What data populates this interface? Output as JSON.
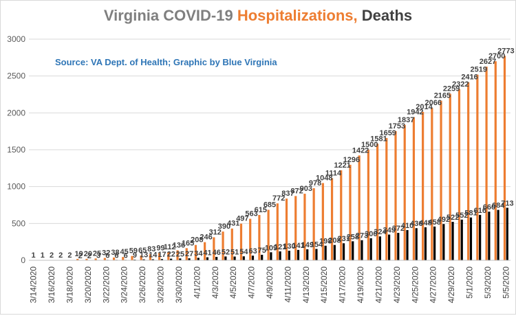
{
  "chart_data": {
    "type": "bar",
    "title_parts": [
      {
        "text": "Virginia COVID-19 ",
        "color": "#7f7f7f"
      },
      {
        "text": "Hospitalizations, ",
        "color": "#ed7d31"
      },
      {
        "text": "Deaths",
        "color": "#404040"
      }
    ],
    "annotation": "Source: VA Dept. of Health; Graphic by Blue Virginia",
    "annotation_color": "#2e75b6",
    "ylim": [
      0,
      3000
    ],
    "yticks": [
      0,
      500,
      1000,
      1500,
      2000,
      2500,
      3000
    ],
    "grid": true,
    "categories": [
      "3/14/2020",
      "3/15/2020",
      "3/16/2020",
      "3/17/2020",
      "3/18/2020",
      "3/19/2020",
      "3/20/2020",
      "3/21/2020",
      "3/22/2020",
      "3/23/2020",
      "3/24/2020",
      "3/25/2020",
      "3/26/2020",
      "3/27/2020",
      "3/28/2020",
      "3/29/2020",
      "3/30/2020",
      "3/31/2020",
      "4/1/2020",
      "4/2/2020",
      "4/3/2020",
      "4/4/2020",
      "4/5/2020",
      "4/6/2020",
      "4/7/2020",
      "4/8/2020",
      "4/9/2020",
      "4/10/2020",
      "4/11/2020",
      "4/12/2020",
      "4/13/2020",
      "4/14/2020",
      "4/15/2020",
      "4/16/2020",
      "4/17/2020",
      "4/18/2020",
      "4/19/2020",
      "4/20/2020",
      "4/21/2020",
      "4/22/2020",
      "4/23/2020",
      "4/24/2020",
      "4/25/2020",
      "4/26/2020",
      "4/27/2020",
      "4/28/2020",
      "4/29/2020",
      "4/30/2020",
      "5/1/2020",
      "5/2/2020",
      "5/3/2020",
      "5/4/2020",
      "5/5/2020"
    ],
    "tick_labels_shown_every": 2,
    "series": [
      {
        "color": "#ed7d31",
        "values": [
          1,
          1,
          2,
          2,
          2,
          19,
          20,
          25,
          32,
          38,
          45,
          59,
          65,
          83,
          99,
          112,
          136,
          165,
          208,
          246,
          312,
          390,
          431,
          497,
          563,
          615,
          685,
          772,
          837,
          872,
          903,
          978,
          1048,
          1114,
          1221,
          1296,
          1422,
          1500,
          1581,
          1659,
          1753,
          1837,
          1942,
          2014,
          2066,
          2165,
          2259,
          2322,
          2416,
          2519,
          2627,
          2700,
          2773
        ]
      },
      {
        "color": "#000000",
        "values": [
          0,
          0,
          0,
          0,
          0,
          2,
          2,
          3,
          6,
          6,
          6,
          9,
          13,
          14,
          17,
          22,
          25,
          27,
          34,
          41,
          46,
          52,
          51,
          54,
          63,
          75,
          109,
          121,
          130,
          141,
          149,
          154,
          198,
          208,
          231,
          258,
          273,
          300,
          324,
          349,
          372,
          410,
          436,
          448,
          458,
          492,
          522,
          552,
          581,
          616,
          660,
          684,
          713
        ]
      }
    ]
  }
}
